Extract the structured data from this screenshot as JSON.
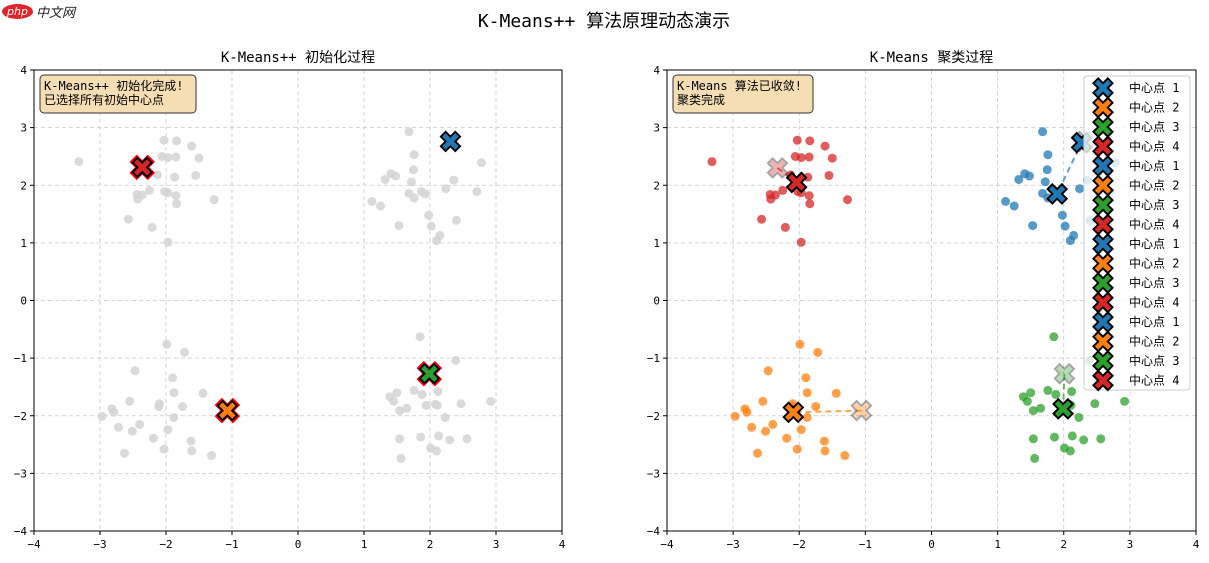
{
  "logo": {
    "badge": "php",
    "text": "中文网"
  },
  "title": "K-Means++ 算法原理动态演示",
  "colors": {
    "c1": "#1f77b4",
    "c2": "#ff7f0e",
    "c3": "#2ca02c",
    "c4": "#d62728",
    "unassigned": "#d3d3d3",
    "annotation_bg": "#f5deb3"
  },
  "chart_data": [
    {
      "type": "scatter",
      "title": "K-Means++ 初始化过程",
      "xlim": [
        -4,
        4
      ],
      "ylim": [
        -4,
        4
      ],
      "xticks": [
        "−4",
        "−3",
        "−2",
        "−1",
        "0",
        "1",
        "2",
        "3",
        "4"
      ],
      "yticks": [
        "4",
        "3",
        "2",
        "1",
        "0",
        "−1",
        "−2",
        "−3",
        "−4"
      ],
      "grid": true,
      "annotation": [
        "K-Means++ 初始化完成!",
        "已选择所有初始中心点"
      ],
      "points_color": "unassigned",
      "clusters": [
        [
          [
            1.68,
            2.93
          ],
          [
            1.76,
            2.53
          ],
          [
            1.75,
            2.27
          ],
          [
            1.32,
            2.1
          ],
          [
            1.41,
            2.2
          ],
          [
            1.48,
            2.16
          ],
          [
            1.72,
            2.06
          ],
          [
            2.78,
            2.39
          ],
          [
            2.36,
            2.09
          ],
          [
            2.24,
            1.94
          ],
          [
            2.71,
            1.89
          ],
          [
            1.68,
            1.86
          ],
          [
            1.87,
            1.89
          ],
          [
            1.93,
            1.85
          ],
          [
            1.76,
            1.78
          ],
          [
            1.12,
            1.72
          ],
          [
            1.25,
            1.64
          ],
          [
            1.98,
            1.48
          ],
          [
            2.4,
            1.39
          ],
          [
            1.53,
            1.3
          ],
          [
            2.02,
            1.29
          ],
          [
            2.15,
            1.13
          ],
          [
            2.1,
            1.04
          ]
        ],
        [
          [
            -1.99,
            -0.76
          ],
          [
            -1.72,
            -0.9
          ],
          [
            -2.47,
            -1.22
          ],
          [
            -1.9,
            -1.34
          ],
          [
            -1.88,
            -1.6
          ],
          [
            -1.44,
            -1.61
          ],
          [
            -2.55,
            -1.75
          ],
          [
            -2.1,
            -1.79
          ],
          [
            -2.11,
            -1.84
          ],
          [
            -1.75,
            -1.84
          ],
          [
            -2.82,
            -1.88
          ],
          [
            -2.79,
            -1.94
          ],
          [
            -2.97,
            -2.01
          ],
          [
            -1.88,
            -2.03
          ],
          [
            -2.72,
            -2.2
          ],
          [
            -2.4,
            -2.15
          ],
          [
            -2.51,
            -2.27
          ],
          [
            -1.97,
            -2.24
          ],
          [
            -2.19,
            -2.39
          ],
          [
            -1.62,
            -2.44
          ],
          [
            -2.03,
            -2.58
          ],
          [
            -1.61,
            -2.61
          ],
          [
            -2.63,
            -2.65
          ],
          [
            -1.31,
            -2.69
          ]
        ],
        [
          [
            1.85,
            -0.63
          ],
          [
            2.39,
            -1.04
          ],
          [
            1.76,
            -1.56
          ],
          [
            1.5,
            -1.6
          ],
          [
            1.39,
            -1.67
          ],
          [
            1.45,
            -1.75
          ],
          [
            1.88,
            -1.63
          ],
          [
            2.12,
            -1.58
          ],
          [
            2.47,
            -1.79
          ],
          [
            2.92,
            -1.75
          ],
          [
            1.94,
            -1.82
          ],
          [
            2.08,
            -1.8
          ],
          [
            2.11,
            -1.82
          ],
          [
            1.54,
            -1.91
          ],
          [
            1.65,
            -1.87
          ],
          [
            2.23,
            -2.03
          ],
          [
            1.54,
            -2.4
          ],
          [
            1.86,
            -2.37
          ],
          [
            2.13,
            -2.35
          ],
          [
            2.3,
            -2.42
          ],
          [
            2.56,
            -2.4
          ],
          [
            2.01,
            -2.56
          ],
          [
            2.1,
            -2.61
          ],
          [
            1.56,
            -2.74
          ]
        ],
        [
          [
            -3.32,
            2.41
          ],
          [
            -2.03,
            2.78
          ],
          [
            -1.84,
            2.77
          ],
          [
            -1.61,
            2.68
          ],
          [
            -2.06,
            2.5
          ],
          [
            -1.97,
            2.48
          ],
          [
            -1.85,
            2.49
          ],
          [
            -1.5,
            2.47
          ],
          [
            -2.13,
            2.18
          ],
          [
            -1.87,
            2.14
          ],
          [
            -1.55,
            2.17
          ],
          [
            -2.25,
            1.91
          ],
          [
            -2.44,
            1.84
          ],
          [
            -2.36,
            1.83
          ],
          [
            -2.43,
            1.76
          ],
          [
            -2.02,
            1.89
          ],
          [
            -1.97,
            1.87
          ],
          [
            -1.85,
            1.82
          ],
          [
            -1.84,
            1.68
          ],
          [
            -1.27,
            1.75
          ],
          [
            -2.57,
            1.41
          ],
          [
            -2.21,
            1.27
          ],
          [
            -1.97,
            1.01
          ]
        ]
      ],
      "centers": [
        {
          "color": "c1",
          "x": 2.31,
          "y": 2.76,
          "outline": "#000000"
        },
        {
          "color": "c2",
          "x": -1.07,
          "y": -1.91,
          "outline": "#ff0000"
        },
        {
          "color": "c3",
          "x": 1.99,
          "y": -1.27,
          "outline": "#ff0000"
        },
        {
          "color": "c4",
          "x": -2.36,
          "y": 2.31,
          "outline": "#ff0000"
        }
      ]
    },
    {
      "type": "scatter",
      "title": "K-Means 聚类过程",
      "xlim": [
        -4,
        4
      ],
      "ylim": [
        -4,
        4
      ],
      "xticks": [
        "−4",
        "−3",
        "−2",
        "−1",
        "0",
        "1",
        "2",
        "3",
        "4"
      ],
      "yticks": [
        "4",
        "3",
        "2",
        "1",
        "0",
        "−1",
        "−2",
        "−3",
        "−4"
      ],
      "grid": true,
      "annotation": [
        "K-Means 算法已收敛!",
        "聚类完成"
      ],
      "points_color": "by-cluster",
      "legend_placement": "upper-right",
      "legend": [
        "中心点 1",
        "中心点 2",
        "中心点 3",
        "中心点 4",
        "中心点 1",
        "中心点 2",
        "中心点 3",
        "中心点 4",
        "中心点 1",
        "中心点 2",
        "中心点 3",
        "中心点 4",
        "中心点 1",
        "中心点 2",
        "中心点 3",
        "中心点 4"
      ],
      "center_trajectories": [
        {
          "color": "c1",
          "path": [
            [
              2.31,
              2.76
            ],
            [
              2.27,
              2.74
            ],
            [
              1.9,
              1.85
            ]
          ]
        },
        {
          "color": "c2",
          "path": [
            [
              -1.06,
              -1.91
            ],
            [
              -2.09,
              -1.94
            ]
          ]
        },
        {
          "color": "c3",
          "path": [
            [
              2.01,
              -1.27
            ],
            [
              1.99,
              -1.88
            ]
          ]
        },
        {
          "color": "c4",
          "path": [
            [
              -2.33,
              2.3
            ],
            [
              -2.04,
              2.05
            ]
          ]
        }
      ]
    }
  ]
}
